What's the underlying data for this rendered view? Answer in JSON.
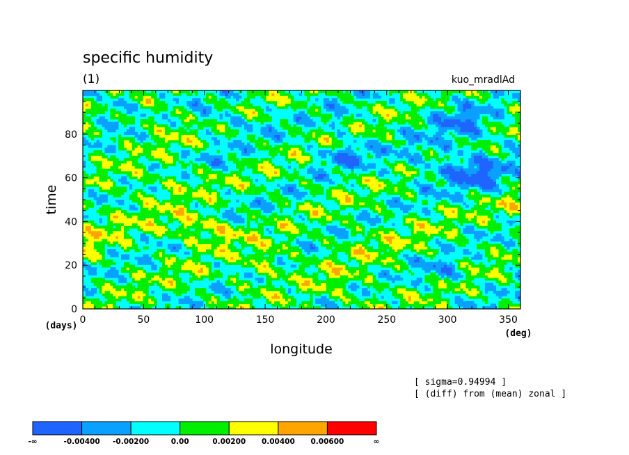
{
  "chart_data": {
    "type": "heatmap",
    "title": "specific humidity",
    "subtitle": "(1)",
    "experiment": "kuo_mradlAd",
    "xlabel": "longitude",
    "ylabel": "time",
    "x_unit": "(deg)",
    "y_unit": "(days)",
    "xlim": [
      0,
      360
    ],
    "ylim": [
      0,
      100
    ],
    "x_ticks": [
      0,
      50,
      100,
      150,
      200,
      250,
      300,
      350
    ],
    "y_ticks": [
      0,
      20,
      40,
      60,
      80
    ],
    "annotations": [
      "[ sigma=0.94994 ]",
      "[ (diff) from (mean) zonal ]"
    ],
    "legend": {
      "placement": "bottom-left",
      "colors": [
        "#1e64ff",
        "#0aa0ff",
        "#00ffff",
        "#00ee00",
        "#ffff00",
        "#ffa500",
        "#ff0000"
      ],
      "labels": [
        "-∞",
        "-0.00400",
        "-0.00200",
        "0.00",
        "0.00200",
        "0.00400",
        "0.00600",
        "∞"
      ],
      "thresholds": [
        -0.004,
        -0.002,
        0.0,
        0.002,
        0.004,
        0.006
      ]
    }
  }
}
